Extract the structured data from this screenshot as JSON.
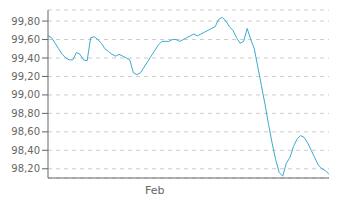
{
  "chart_data": {
    "type": "line",
    "categories": [
      null,
      null,
      null,
      null,
      null,
      null,
      null,
      null,
      null,
      null,
      null,
      null,
      null,
      null,
      null,
      null,
      null,
      null,
      null,
      null,
      null,
      null,
      null,
      null,
      null,
      null,
      null,
      null,
      null,
      null,
      "Feb",
      null,
      null,
      null,
      null,
      null,
      null,
      null,
      null,
      null,
      null,
      null,
      null,
      null,
      null,
      null,
      null,
      null,
      null,
      null,
      null,
      null,
      null,
      null,
      null,
      null,
      null,
      null,
      null,
      null,
      null,
      null,
      null,
      null,
      null,
      null,
      null,
      null,
      null,
      null,
      null,
      null,
      null,
      null,
      null,
      null,
      null,
      null,
      null,
      null
    ],
    "series": [
      {
        "color": "#3aabcc",
        "values": [
          99.64,
          99.62,
          99.56,
          99.5,
          99.44,
          99.4,
          99.38,
          99.38,
          99.46,
          99.44,
          99.38,
          99.37,
          99.62,
          99.63,
          99.6,
          99.56,
          99.5,
          99.47,
          99.44,
          99.42,
          99.44,
          99.42,
          99.4,
          99.38,
          99.24,
          99.22,
          99.24,
          99.3,
          99.36,
          99.42,
          99.48,
          99.54,
          99.58,
          99.58,
          99.58,
          99.6,
          99.6,
          99.58,
          99.6,
          99.62,
          99.64,
          99.66,
          99.64,
          99.66,
          99.68,
          99.7,
          99.72,
          99.74,
          99.82,
          99.84,
          99.8,
          99.74,
          99.7,
          99.62,
          99.56,
          99.58,
          99.72,
          99.6,
          99.5,
          99.3,
          99.1,
          98.9,
          98.68,
          98.48,
          98.3,
          98.16,
          98.12,
          98.26,
          98.32,
          98.44,
          98.52,
          98.56,
          98.54,
          98.48,
          98.4,
          98.32,
          98.24,
          98.2,
          98.18,
          98.14
        ]
      }
    ],
    "ylim": [
      98.1,
      99.92
    ],
    "yticks": [
      {
        "value": 98.2,
        "label": "98,20"
      },
      {
        "value": 98.4,
        "label": "98,40"
      },
      {
        "value": 98.6,
        "label": "98,60"
      },
      {
        "value": 98.8,
        "label": "98,80"
      },
      {
        "value": 99.0,
        "label": "99,00"
      },
      {
        "value": 99.2,
        "label": "99,20"
      },
      {
        "value": 99.4,
        "label": "99,40"
      },
      {
        "value": 99.6,
        "label": "99,60"
      },
      {
        "value": 99.8,
        "label": "99,80"
      }
    ],
    "grid": true
  }
}
